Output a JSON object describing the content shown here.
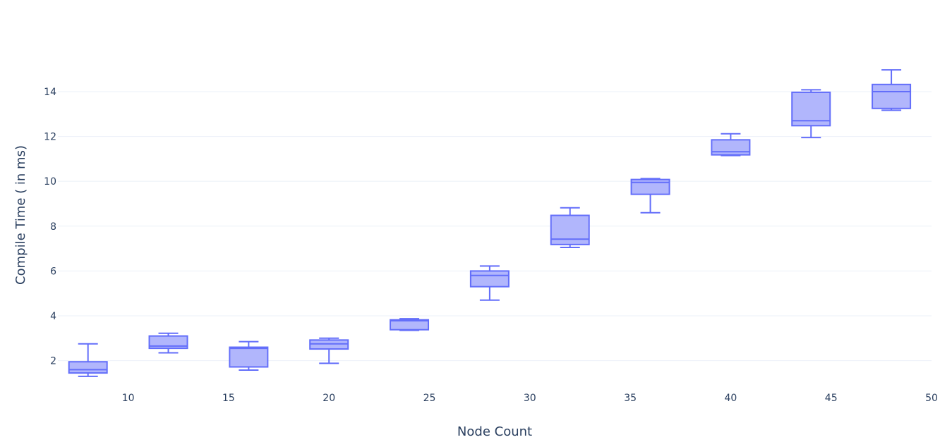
{
  "chart_data": {
    "type": "box",
    "title": "",
    "xlabel": "Node Count",
    "ylabel": "Compile Time ( in ms)",
    "xlim": [
      6.5,
      50
    ],
    "ylim": [
      0.95,
      16.2
    ],
    "x_ticks": [
      10,
      15,
      20,
      25,
      30,
      35,
      40,
      45,
      50
    ],
    "y_ticks": [
      2,
      4,
      6,
      8,
      10,
      12,
      14
    ],
    "grid": true,
    "legend": "none",
    "colors": {
      "box_line": "#636efa",
      "box_fill": "#b1b6fc",
      "grid": "#ebf0f8",
      "text": "#2a3f5f",
      "background": "#ffffff"
    },
    "series": [
      {
        "boxes": [
          {
            "x": 8,
            "min": 1.3,
            "q1": 1.45,
            "median": 1.6,
            "q3": 1.95,
            "max": 2.75
          },
          {
            "x": 12,
            "min": 2.35,
            "q1": 2.55,
            "median": 2.65,
            "q3": 3.1,
            "max": 3.22
          },
          {
            "x": 16,
            "min": 1.58,
            "q1": 1.72,
            "median": 2.55,
            "q3": 2.6,
            "max": 2.85
          },
          {
            "x": 20,
            "min": 1.88,
            "q1": 2.52,
            "median": 2.75,
            "q3": 2.92,
            "max": 3.0
          },
          {
            "x": 24,
            "min": 3.35,
            "q1": 3.38,
            "median": 3.78,
            "q3": 3.82,
            "max": 3.87
          },
          {
            "x": 28,
            "min": 4.7,
            "q1": 5.3,
            "median": 5.8,
            "q3": 6.0,
            "max": 6.22
          },
          {
            "x": 32,
            "min": 7.05,
            "q1": 7.18,
            "median": 7.42,
            "q3": 8.48,
            "max": 8.82
          },
          {
            "x": 36,
            "min": 8.6,
            "q1": 9.42,
            "median": 9.95,
            "q3": 10.08,
            "max": 10.12
          },
          {
            "x": 40,
            "min": 11.15,
            "q1": 11.18,
            "median": 11.32,
            "q3": 11.85,
            "max": 12.12
          },
          {
            "x": 44,
            "min": 11.95,
            "q1": 12.48,
            "median": 12.7,
            "q3": 13.97,
            "max": 14.08
          },
          {
            "x": 48,
            "min": 13.17,
            "q1": 13.25,
            "median": 14.0,
            "q3": 14.32,
            "max": 14.97
          }
        ]
      }
    ]
  }
}
